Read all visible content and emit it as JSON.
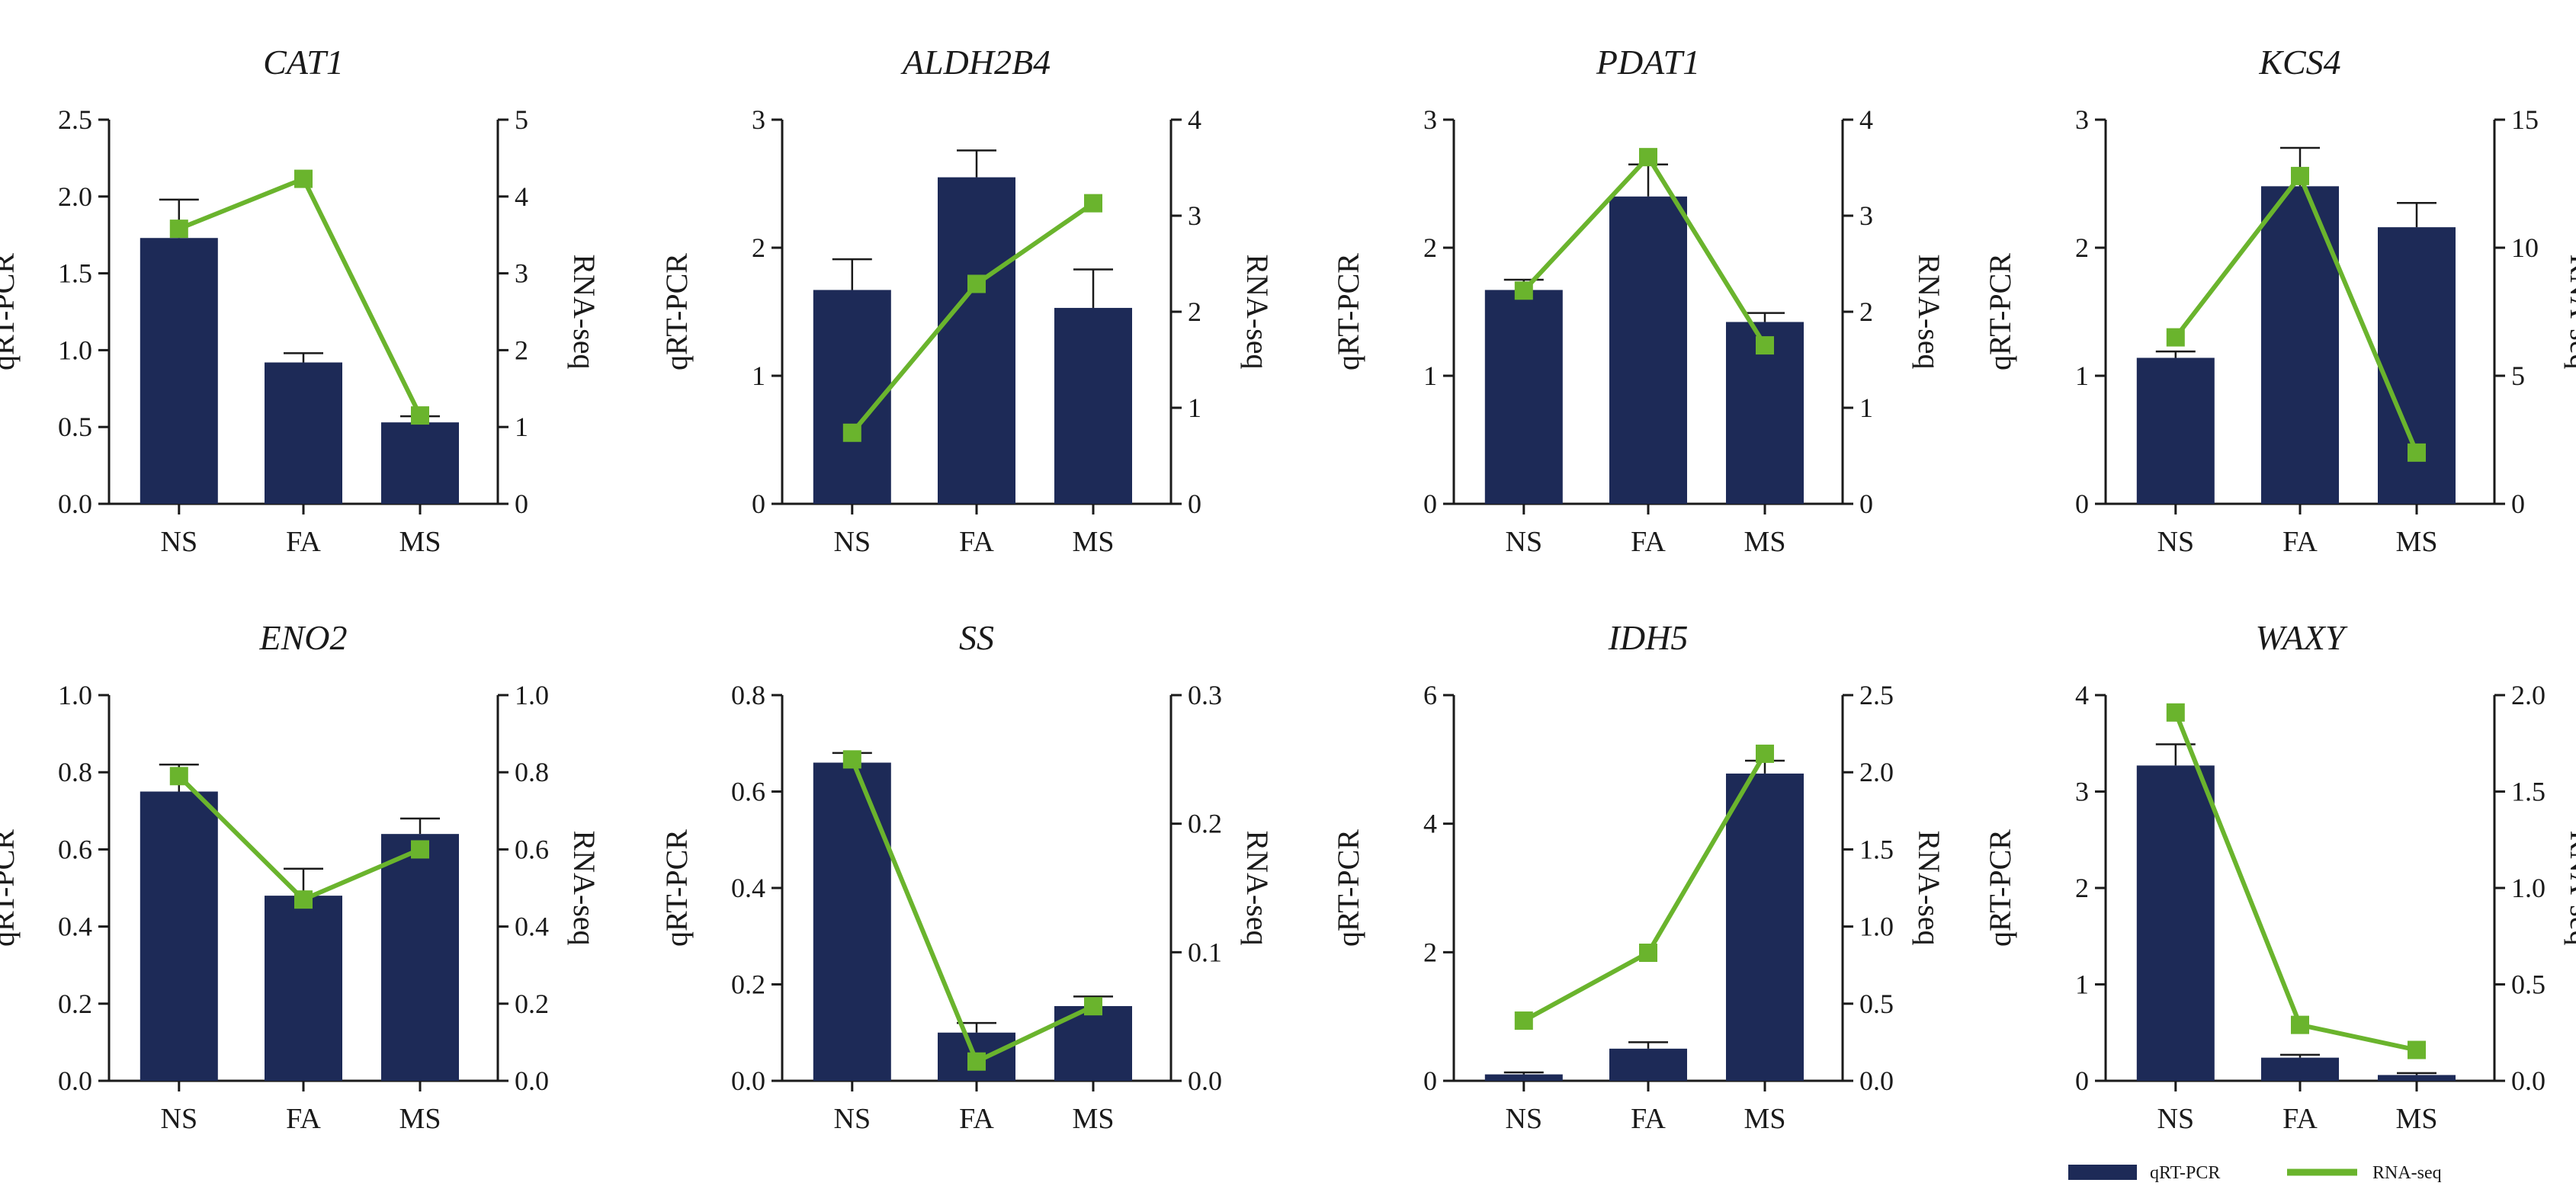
{
  "colors": {
    "bar": "#1d2a57",
    "line": "#6ab42d",
    "axis": "#1a1a1a"
  },
  "legend": {
    "items": [
      {
        "label": "qRT-PCR",
        "kind": "bar"
      },
      {
        "label": "RNA-seq",
        "kind": "line"
      }
    ],
    "placement": "bottom-right"
  },
  "chart_data": [
    {
      "type": "bar+line",
      "title": "CAT1",
      "categories": [
        "NS",
        "FA",
        "MS"
      ],
      "ylabel": "qRT-PCR",
      "y2label": "RNA-seq",
      "ylim": [
        0,
        2.5
      ],
      "yticks": [
        "0.0",
        "0.5",
        "1.0",
        "1.5",
        "2.0",
        "2.5"
      ],
      "y2lim": [
        0,
        5
      ],
      "y2ticks": [
        "0",
        "1",
        "2",
        "3",
        "4",
        "5"
      ],
      "series": [
        {
          "name": "qRT-PCR",
          "kind": "bar",
          "axis": "left",
          "values": [
            1.73,
            0.92,
            0.53
          ],
          "errors": [
            0.25,
            0.06,
            0.04
          ]
        },
        {
          "name": "RNA-seq",
          "kind": "line",
          "axis": "right",
          "values": [
            3.58,
            4.23,
            1.15
          ]
        }
      ]
    },
    {
      "type": "bar+line",
      "title": "ALDH2B4",
      "categories": [
        "NS",
        "FA",
        "MS"
      ],
      "ylabel": "qRT-PCR",
      "y2label": "RNA-seq",
      "ylim": [
        0,
        3
      ],
      "yticks": [
        "0",
        "1",
        "2",
        "3"
      ],
      "y2lim": [
        0,
        4
      ],
      "y2ticks": [
        "0",
        "1",
        "2",
        "3",
        "4"
      ],
      "series": [
        {
          "name": "qRT-PCR",
          "kind": "bar",
          "axis": "left",
          "values": [
            1.67,
            2.55,
            1.53
          ],
          "errors": [
            0.24,
            0.21,
            0.3
          ]
        },
        {
          "name": "RNA-seq",
          "kind": "line",
          "axis": "right",
          "values": [
            0.74,
            2.29,
            3.13
          ]
        }
      ]
    },
    {
      "type": "bar+line",
      "title": "PDAT1",
      "categories": [
        "NS",
        "FA",
        "MS"
      ],
      "ylabel": "qRT-PCR",
      "y2label": "RNA-seq",
      "ylim": [
        0,
        3
      ],
      "yticks": [
        "0",
        "1",
        "2",
        "3"
      ],
      "y2lim": [
        0,
        4
      ],
      "y2ticks": [
        "0",
        "1",
        "2",
        "3",
        "4"
      ],
      "series": [
        {
          "name": "qRT-PCR",
          "kind": "bar",
          "axis": "left",
          "values": [
            1.67,
            2.4,
            1.42
          ],
          "errors": [
            0.08,
            0.25,
            0.07
          ]
        },
        {
          "name": "RNA-seq",
          "kind": "line",
          "axis": "right",
          "values": [
            2.22,
            3.61,
            1.65
          ]
        }
      ]
    },
    {
      "type": "bar+line",
      "title": "KCS4",
      "categories": [
        "NS",
        "FA",
        "MS"
      ],
      "ylabel": "qRT-PCR",
      "y2label": "RNA-seq",
      "ylim": [
        0,
        3
      ],
      "yticks": [
        "0",
        "1",
        "2",
        "3"
      ],
      "y2lim": [
        0,
        15
      ],
      "y2ticks": [
        "0",
        "5",
        "10",
        "15"
      ],
      "series": [
        {
          "name": "qRT-PCR",
          "kind": "bar",
          "axis": "left",
          "values": [
            1.14,
            2.48,
            2.16
          ],
          "errors": [
            0.05,
            0.3,
            0.19
          ]
        },
        {
          "name": "RNA-seq",
          "kind": "line",
          "axis": "right",
          "values": [
            6.5,
            12.8,
            2.0
          ]
        }
      ]
    },
    {
      "type": "bar+line",
      "title": "ENO2",
      "categories": [
        "NS",
        "FA",
        "MS"
      ],
      "ylabel": "qRT-PCR",
      "y2label": "RNA-seq",
      "ylim": [
        0,
        1.0
      ],
      "yticks": [
        "0.0",
        "0.2",
        "0.4",
        "0.6",
        "0.8",
        "1.0"
      ],
      "y2lim": [
        0,
        1.0
      ],
      "y2ticks": [
        "0.0",
        "0.2",
        "0.4",
        "0.6",
        "0.8",
        "1.0"
      ],
      "series": [
        {
          "name": "qRT-PCR",
          "kind": "bar",
          "axis": "left",
          "values": [
            0.75,
            0.48,
            0.64
          ],
          "errors": [
            0.07,
            0.07,
            0.04
          ]
        },
        {
          "name": "RNA-seq",
          "kind": "line",
          "axis": "right",
          "values": [
            0.79,
            0.47,
            0.6
          ]
        }
      ]
    },
    {
      "type": "bar+line",
      "title": "SS",
      "categories": [
        "NS",
        "FA",
        "MS"
      ],
      "ylabel": "qRT-PCR",
      "y2label": "RNA-seq",
      "ylim": [
        0,
        0.8
      ],
      "yticks": [
        "0.0",
        "0.2",
        "0.4",
        "0.6",
        "0.8"
      ],
      "y2lim": [
        0,
        0.3
      ],
      "y2ticks": [
        "0.0",
        "0.1",
        "0.2",
        "0.3"
      ],
      "series": [
        {
          "name": "qRT-PCR",
          "kind": "bar",
          "axis": "left",
          "values": [
            0.66,
            0.1,
            0.155
          ],
          "errors": [
            0.02,
            0.02,
            0.02
          ]
        },
        {
          "name": "RNA-seq",
          "kind": "line",
          "axis": "right",
          "values": [
            0.25,
            0.015,
            0.058
          ]
        }
      ]
    },
    {
      "type": "bar+line",
      "title": "IDH5",
      "categories": [
        "NS",
        "FA",
        "MS"
      ],
      "ylabel": "qRT-PCR",
      "y2label": "RNA-seq",
      "ylim": [
        0,
        6
      ],
      "yticks": [
        "0",
        "2",
        "4",
        "6"
      ],
      "y2lim": [
        0,
        2.5
      ],
      "y2ticks": [
        "0.0",
        "0.5",
        "1.0",
        "1.5",
        "2.0",
        "2.5"
      ],
      "series": [
        {
          "name": "qRT-PCR",
          "kind": "bar",
          "axis": "left",
          "values": [
            0.1,
            0.5,
            4.78
          ],
          "errors": [
            0.03,
            0.1,
            0.2
          ]
        },
        {
          "name": "RNA-seq",
          "kind": "line",
          "axis": "right",
          "values": [
            0.39,
            0.83,
            2.12
          ]
        }
      ]
    },
    {
      "type": "bar+line",
      "title": "WAXY",
      "categories": [
        "NS",
        "FA",
        "MS"
      ],
      "ylabel": "qRT-PCR",
      "y2label": "RNA-seq",
      "ylim": [
        0,
        4
      ],
      "yticks": [
        "0",
        "1",
        "2",
        "3",
        "4"
      ],
      "y2lim": [
        0,
        2.0
      ],
      "y2ticks": [
        "0.0",
        "0.5",
        "1.0",
        "1.5",
        "2.0"
      ],
      "series": [
        {
          "name": "qRT-PCR",
          "kind": "bar",
          "axis": "left",
          "values": [
            3.27,
            0.24,
            0.06
          ],
          "errors": [
            0.22,
            0.03,
            0.02
          ]
        },
        {
          "name": "RNA-seq",
          "kind": "line",
          "axis": "right",
          "values": [
            1.91,
            0.29,
            0.16
          ]
        }
      ]
    }
  ]
}
